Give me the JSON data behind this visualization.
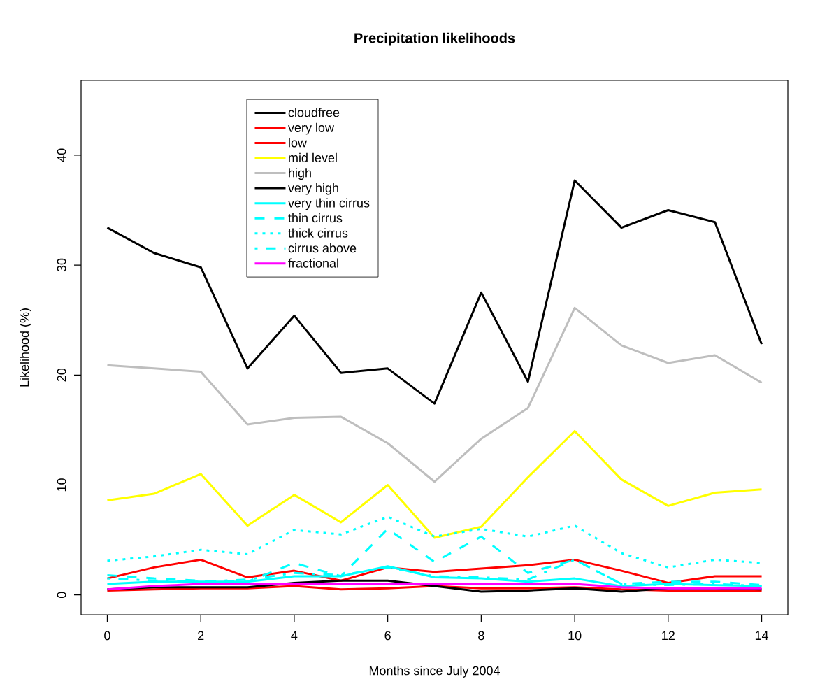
{
  "chart_data": {
    "type": "line",
    "title": "Precipitation likelihoods",
    "xlabel": "Months since July 2004",
    "ylabel": "Likelihood (%)",
    "x": [
      0,
      1,
      2,
      3,
      4,
      5,
      6,
      7,
      8,
      9,
      10,
      11,
      12,
      13,
      14
    ],
    "xlim": [
      -0.56,
      14.56
    ],
    "ylim": [
      -1.8,
      46.8
    ],
    "xticks": [
      0,
      2,
      4,
      6,
      8,
      10,
      12,
      14
    ],
    "yticks": [
      0,
      10,
      20,
      30,
      40
    ],
    "grid": false,
    "legend": "top left",
    "marker": "none",
    "series": [
      {
        "name": "cloudfree",
        "color": "#000000",
        "line_style": "solid",
        "values": [
          33.4,
          31.1,
          29.8,
          20.6,
          25.4,
          20.2,
          20.6,
          17.4,
          27.5,
          19.4,
          37.7,
          33.4,
          35.0,
          33.9,
          22.8
        ]
      },
      {
        "name": "very low",
        "color": "#ff0000",
        "line_style": "solid",
        "values": [
          1.5,
          2.5,
          3.2,
          1.6,
          2.2,
          1.3,
          2.5,
          2.1,
          2.4,
          2.7,
          3.2,
          2.2,
          1.1,
          1.7,
          1.7
        ]
      },
      {
        "name": "low",
        "color": "#ff0000",
        "line_style": "solid",
        "values": [
          0.4,
          0.5,
          0.6,
          0.6,
          0.8,
          0.5,
          0.6,
          0.8,
          0.6,
          0.6,
          0.7,
          0.5,
          0.4,
          0.4,
          0.4
        ]
      },
      {
        "name": "mid level",
        "color": "#ffff00",
        "line_style": "solid",
        "values": [
          8.6,
          9.2,
          11.0,
          6.3,
          9.1,
          6.6,
          10.0,
          5.2,
          6.2,
          10.7,
          14.9,
          10.5,
          8.1,
          9.3,
          9.6
        ]
      },
      {
        "name": "high",
        "color": "#bebebe",
        "line_style": "solid",
        "values": [
          20.9,
          20.6,
          20.3,
          15.5,
          16.1,
          16.2,
          13.8,
          10.3,
          14.2,
          17.0,
          26.1,
          22.7,
          21.1,
          21.8,
          19.3
        ]
      },
      {
        "name": "very high",
        "color": "#000000",
        "line_style": "solid",
        "values": [
          0.5,
          0.7,
          0.7,
          0.7,
          1.1,
          1.3,
          1.3,
          0.8,
          0.3,
          0.4,
          0.6,
          0.3,
          0.6,
          0.6,
          0.5
        ]
      },
      {
        "name": "very thin cirrus",
        "color": "#00ffff",
        "line_style": "solid",
        "values": [
          1.0,
          1.2,
          1.2,
          1.2,
          1.7,
          1.7,
          2.6,
          1.6,
          1.5,
          1.2,
          1.5,
          0.8,
          1.0,
          0.9,
          0.8
        ]
      },
      {
        "name": "thin cirrus",
        "color": "#00ffff",
        "line_style": "dashed",
        "values": [
          1.8,
          1.5,
          1.3,
          1.2,
          2.9,
          1.7,
          6.0,
          3.0,
          5.3,
          2.0,
          3.2,
          1.0,
          1.2,
          1.2,
          0.9
        ]
      },
      {
        "name": "thick cirrus",
        "color": "#00ffff",
        "line_style": "dotted",
        "values": [
          3.1,
          3.5,
          4.1,
          3.7,
          5.9,
          5.5,
          7.1,
          5.3,
          6.0,
          5.3,
          6.3,
          3.8,
          2.5,
          3.2,
          2.9
        ]
      },
      {
        "name": "cirrus above",
        "color": "#00ffff",
        "line_style": "dashdot",
        "values": [
          1.5,
          1.3,
          1.2,
          1.4,
          2.0,
          1.8,
          2.5,
          1.7,
          1.6,
          1.4,
          3.2,
          1.0,
          0.9,
          1.0,
          0.8
        ]
      },
      {
        "name": "fractional",
        "color": "#ff00ff",
        "line_style": "solid",
        "values": [
          0.5,
          0.8,
          1.0,
          1.0,
          1.0,
          1.0,
          1.0,
          1.0,
          1.0,
          1.0,
          1.0,
          0.7,
          0.6,
          0.6,
          0.6
        ]
      }
    ]
  }
}
